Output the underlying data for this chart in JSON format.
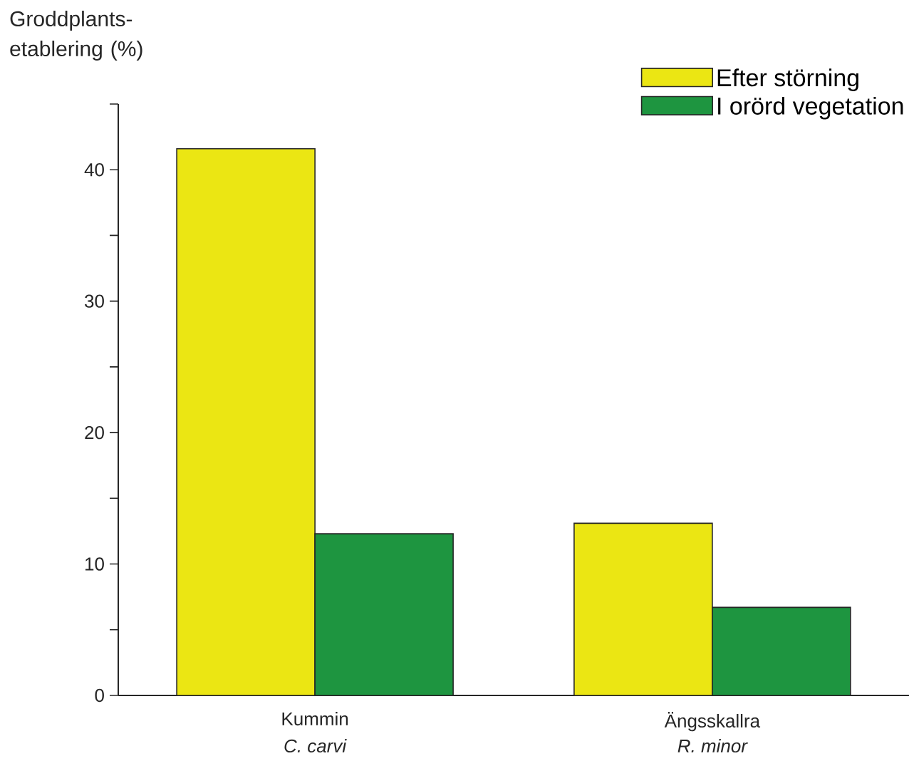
{
  "chart_data": {
    "type": "bar",
    "ylabel": "Groddplants-etablering (%)",
    "categories": [
      "Kummin",
      "Ängsskallra"
    ],
    "series": [
      {
        "name": "Efter störning",
        "color": "#ebe613",
        "values": [
          41.6,
          13.1
        ]
      },
      {
        "name": "I orörd vegetation",
        "color": "#1e9540",
        "values": [
          12.3,
          6.7
        ]
      }
    ],
    "ylim": [
      0,
      45
    ],
    "yticks": [
      0,
      {
        "value": 5,
        "label": null
      },
      10,
      {
        "value": 15,
        "label": null
      },
      20,
      {
        "value": 25,
        "label": null
      },
      30,
      {
        "value": 35,
        "label": null
      },
      40,
      {
        "value": 45,
        "label": null
      }
    ],
    "annotations": [
      "C. carvi",
      "R. minor"
    ],
    "legend": "top right"
  }
}
